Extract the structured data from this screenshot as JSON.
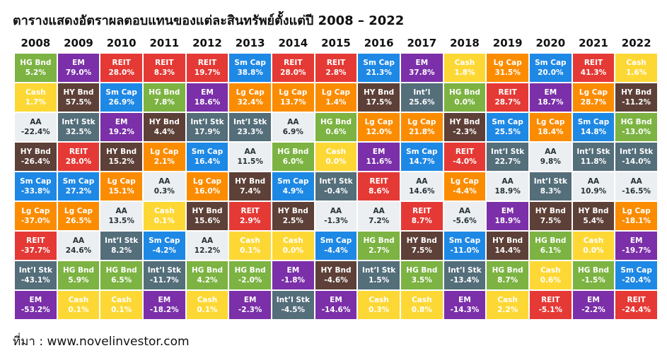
{
  "header": {
    "title": "ตารางแสดงอัตราผลตอบแทนของแต่ละสินทรัพย์ตั้งแต่ปี 2008 – 2022"
  },
  "palette": {
    "HG Bnd": {
      "bg": "#7cb342",
      "fg": "#ffffff"
    },
    "EM": {
      "bg": "#7b2fa8",
      "fg": "#ffffff"
    },
    "REIT": {
      "bg": "#e53935",
      "fg": "#ffffff"
    },
    "Sm Cap": {
      "bg": "#1e88e5",
      "fg": "#ffffff"
    },
    "Cash": {
      "bg": "#fdd835",
      "fg": "#ffffff"
    },
    "Lg Cap": {
      "bg": "#fb8c00",
      "fg": "#ffffff"
    },
    "Int’l Stk": {
      "bg": "#546e7a",
      "fg": "#ffffff"
    },
    "Int’l": {
      "bg": "#546e7a",
      "fg": "#ffffff"
    },
    "HY Bnd": {
      "bg": "#5d4037",
      "fg": "#ffffff"
    },
    "AA": {
      "bg": "#eceff1",
      "fg": "#263238"
    }
  },
  "table": {
    "columns": [
      {
        "year": "2008",
        "cells": [
          [
            "HG Bnd",
            "5.2%"
          ],
          [
            "Cash",
            "1.7%"
          ],
          [
            "AA",
            "-22.4%"
          ],
          [
            "HY Bnd",
            "-26.4%"
          ],
          [
            "Sm Cap",
            "-33.8%"
          ],
          [
            "Lg Cap",
            "-37.0%"
          ],
          [
            "REIT",
            "-37.7%"
          ],
          [
            "Int’l Stk",
            "-43.1%"
          ],
          [
            "EM",
            "-53.2%"
          ]
        ]
      },
      {
        "year": "2009",
        "cells": [
          [
            "EM",
            "79.0%"
          ],
          [
            "HY Bnd",
            "57.5%"
          ],
          [
            "Int’l Stk",
            "32.5%"
          ],
          [
            "REIT",
            "28.0%"
          ],
          [
            "Sm Cap",
            "27.2%"
          ],
          [
            "Lg Cap",
            "26.5%"
          ],
          [
            "AA",
            "24.6%"
          ],
          [
            "HG Bnd",
            "5.9%"
          ],
          [
            "Cash",
            "0.1%"
          ]
        ]
      },
      {
        "year": "2010",
        "cells": [
          [
            "REIT",
            "28.0%"
          ],
          [
            "Sm Cap",
            "26.9%"
          ],
          [
            "EM",
            "19.2%"
          ],
          [
            "HY Bnd",
            "15.2%"
          ],
          [
            "Lg Cap",
            "15.1%"
          ],
          [
            "AA",
            "13.5%"
          ],
          [
            "Int’l Stk",
            "8.2%"
          ],
          [
            "HG Bnd",
            "6.5%"
          ],
          [
            "Cash",
            "0.1%"
          ]
        ]
      },
      {
        "year": "2011",
        "cells": [
          [
            "REIT",
            "8.3%"
          ],
          [
            "HG Bnd",
            "7.8%"
          ],
          [
            "HY Bnd",
            "4.4%"
          ],
          [
            "Lg Cap",
            "2.1%"
          ],
          [
            "AA",
            "0.3%"
          ],
          [
            "Cash",
            "0.1%"
          ],
          [
            "Sm Cap",
            "-4.2%"
          ],
          [
            "Int’l Stk",
            "-11.7%"
          ],
          [
            "EM",
            "-18.2%"
          ]
        ]
      },
      {
        "year": "2012",
        "cells": [
          [
            "REIT",
            "19.7%"
          ],
          [
            "EM",
            "18.6%"
          ],
          [
            "Int’l Stk",
            "17.9%"
          ],
          [
            "Sm Cap",
            "16.4%"
          ],
          [
            "Lg Cap",
            "16.0%"
          ],
          [
            "HY Bnd",
            "15.6%"
          ],
          [
            "AA",
            "12.2%"
          ],
          [
            "HG Bnd",
            "4.2%"
          ],
          [
            "Cash",
            "0.1%"
          ]
        ]
      },
      {
        "year": "2013",
        "cells": [
          [
            "Sm Cap",
            "38.8%"
          ],
          [
            "Lg Cap",
            "32.4%"
          ],
          [
            "Int’l Stk",
            "23.3%"
          ],
          [
            "AA",
            "11.5%"
          ],
          [
            "HY Bnd",
            "7.4%"
          ],
          [
            "REIT",
            "2.9%"
          ],
          [
            "Cash",
            "0.1%"
          ],
          [
            "HG Bnd",
            "-2.0%"
          ],
          [
            "EM",
            "-2.3%"
          ]
        ]
      },
      {
        "year": "2014",
        "cells": [
          [
            "REIT",
            "28.0%"
          ],
          [
            "Lg Cap",
            "13.7%"
          ],
          [
            "AA",
            "6.9%"
          ],
          [
            "HG Bnd",
            "6.0%"
          ],
          [
            "Sm Cap",
            "4.9%"
          ],
          [
            "HY Bnd",
            "2.5%"
          ],
          [
            "Cash",
            "0.0%"
          ],
          [
            "EM",
            "-1.8%"
          ],
          [
            "Int’l Stk",
            "-4.5%"
          ]
        ]
      },
      {
        "year": "2015",
        "cells": [
          [
            "REIT",
            "2.8%"
          ],
          [
            "Lg Cap",
            "1.4%"
          ],
          [
            "HG Bnd",
            "0.6%"
          ],
          [
            "Cash",
            "0.0%"
          ],
          [
            "Int’l Stk",
            "-0.4%"
          ],
          [
            "AA",
            "-1.3%"
          ],
          [
            "Sm Cap",
            "-4.4%"
          ],
          [
            "HY Bnd",
            "-4.6%"
          ],
          [
            "EM",
            "-14.6%"
          ]
        ]
      },
      {
        "year": "2016",
        "cells": [
          [
            "Sm Cap",
            "21.3%"
          ],
          [
            "HY Bnd",
            "17.5%"
          ],
          [
            "Lg Cap",
            "12.0%"
          ],
          [
            "EM",
            "11.6%"
          ],
          [
            "REIT",
            "8.6%"
          ],
          [
            "AA",
            "7.2%"
          ],
          [
            "HG Bnd",
            "2.7%"
          ],
          [
            "Int’l Stk",
            "1.5%"
          ],
          [
            "Cash",
            "0.3%"
          ]
        ]
      },
      {
        "year": "2017",
        "cells": [
          [
            "EM",
            "37.8%"
          ],
          [
            "Int’l",
            "25.6%"
          ],
          [
            "Lg Cap",
            "21.8%"
          ],
          [
            "Sm Cap",
            "14.7%"
          ],
          [
            "AA",
            "14.6%"
          ],
          [
            "REIT",
            "8.7%"
          ],
          [
            "HY Bnd",
            "7.5%"
          ],
          [
            "HG Bnd",
            "3.5%"
          ],
          [
            "Cash",
            "0.8%"
          ]
        ]
      },
      {
        "year": "2018",
        "cells": [
          [
            "Cash",
            "1.8%"
          ],
          [
            "HG Bnd",
            "0.0%"
          ],
          [
            "HY Bnd",
            "-2.3%"
          ],
          [
            "REIT",
            "-4.0%"
          ],
          [
            "Lg Cap",
            "-4.4%"
          ],
          [
            "AA",
            "-5.6%"
          ],
          [
            "Sm Cap",
            "-11.0%"
          ],
          [
            "Int’l Stk",
            "-13.4%"
          ],
          [
            "EM",
            "-14.3%"
          ]
        ]
      },
      {
        "year": "2019",
        "cells": [
          [
            "Lg Cap",
            "31.5%"
          ],
          [
            "REIT",
            "28.7%"
          ],
          [
            "Sm Cap",
            "25.5%"
          ],
          [
            "Int’l Stk",
            "22.7%"
          ],
          [
            "AA",
            "18.9%"
          ],
          [
            "EM",
            "18.9%"
          ],
          [
            "HY Bnd",
            "14.4%"
          ],
          [
            "HG Bnd",
            "8.7%"
          ],
          [
            "Cash",
            "2.2%"
          ]
        ]
      },
      {
        "year": "2020",
        "cells": [
          [
            "Sm Cap",
            "20.0%"
          ],
          [
            "EM",
            "18.7%"
          ],
          [
            "Lg Cap",
            "18.4%"
          ],
          [
            "AA",
            "9.8%"
          ],
          [
            "Int’l Stk",
            "8.3%"
          ],
          [
            "HY Bnd",
            "7.5%"
          ],
          [
            "HG Bnd",
            "6.1%"
          ],
          [
            "Cash",
            "0.6%"
          ],
          [
            "REIT",
            "-5.1%"
          ]
        ]
      },
      {
        "year": "2021",
        "cells": [
          [
            "REIT",
            "41.3%"
          ],
          [
            "Lg Cap",
            "28.7%"
          ],
          [
            "Sm Cap",
            "14.8%"
          ],
          [
            "Int’l Stk",
            "11.8%"
          ],
          [
            "AA",
            "10.9%"
          ],
          [
            "HY Bnd",
            "5.4%"
          ],
          [
            "Cash",
            "0.0%"
          ],
          [
            "HG Bnd",
            "-1.5%"
          ],
          [
            "EM",
            "-2.2%"
          ]
        ]
      },
      {
        "year": "2022",
        "cells": [
          [
            "Cash",
            "1.6%"
          ],
          [
            "HY Bnd",
            "-11.2%"
          ],
          [
            "HG Bnd",
            "-13.0%"
          ],
          [
            "Int’l Stk",
            "-14.0%"
          ],
          [
            "AA",
            "-16.5%"
          ],
          [
            "Lg Cap",
            "-18.1%"
          ],
          [
            "EM",
            "-19.7%"
          ],
          [
            "Sm Cap",
            "-20.4%"
          ],
          [
            "REIT",
            "-24.4%"
          ]
        ]
      }
    ]
  },
  "footer": {
    "source": "ที่มา : www.novelinvestor.com"
  }
}
